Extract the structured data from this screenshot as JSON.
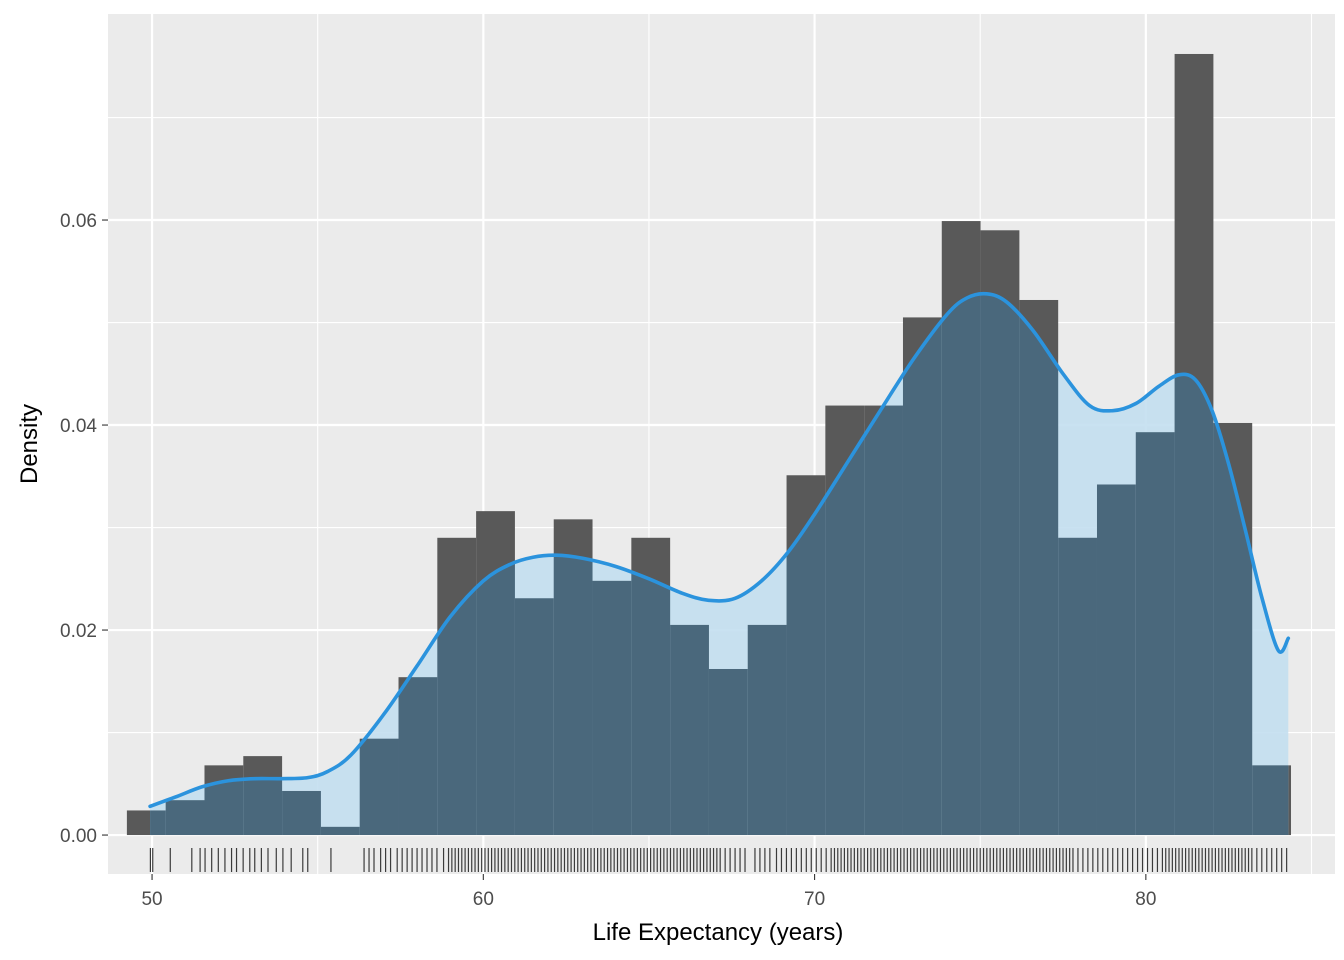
{
  "chart_data": {
    "type": "histogram",
    "title": "",
    "xlabel": "Life Expectancy (years)",
    "ylabel": "Density",
    "xlim": [
      48.67,
      85.71
    ],
    "ylim": [
      -0.0038,
      0.0801
    ],
    "x_ticks": [
      50,
      60,
      70,
      80
    ],
    "x_tick_labels": [
      "50",
      "60",
      "70",
      "80"
    ],
    "y_ticks": [
      0,
      0.02,
      0.04,
      0.06
    ],
    "y_tick_labels": [
      "0.00",
      "0.02",
      "0.04",
      "0.06"
    ],
    "grid": true,
    "legend": "none",
    "colors": {
      "panel_background": "#ebebeb",
      "grid_line": "#ffffff",
      "histogram_fill": "#595959",
      "density_fill": "#c3dff0",
      "density_fill_opacity": 0.9,
      "overlap_fill": "#4a687c",
      "density_line": "#2b93dd",
      "rug": "#000000"
    },
    "histogram": {
      "bin_start": 49.24,
      "bin_width": 1.1714,
      "densities": [
        0.0024,
        0.0034,
        0.0068,
        0.0077,
        0.0043,
        0.0008,
        0.0094,
        0.0154,
        0.029,
        0.0316,
        0.0231,
        0.0308,
        0.0248,
        0.029,
        0.0205,
        0.0162,
        0.0205,
        0.0351,
        0.0419,
        0.0419,
        0.0505,
        0.0599,
        0.059,
        0.0522,
        0.029,
        0.0342,
        0.0393,
        0.0762,
        0.0402,
        0.0068
      ]
    },
    "density_curve": {
      "x": [
        49.94,
        50.7,
        51.5,
        52.3,
        53.1,
        53.9,
        54.7,
        55.3,
        56.0,
        57.0,
        58.0,
        59.0,
        60.0,
        60.8,
        61.5,
        62.2,
        63.0,
        64.0,
        65.0,
        66.0,
        66.8,
        67.6,
        68.4,
        69.2,
        70.0,
        71.0,
        72.0,
        73.0,
        74.0,
        74.6,
        75.2,
        75.8,
        76.6,
        77.5,
        78.3,
        79.0,
        79.7,
        80.4,
        81.0,
        81.5,
        82.0,
        82.5,
        83.0,
        83.5,
        84.0,
        84.3
      ],
      "y": [
        0.0028,
        0.0037,
        0.0047,
        0.0053,
        0.0055,
        0.0055,
        0.0056,
        0.0062,
        0.0078,
        0.0118,
        0.0165,
        0.0213,
        0.0248,
        0.0264,
        0.0271,
        0.0273,
        0.027,
        0.0262,
        0.025,
        0.0236,
        0.0229,
        0.0231,
        0.0248,
        0.0276,
        0.0313,
        0.0364,
        0.0415,
        0.0465,
        0.0508,
        0.0524,
        0.0528,
        0.052,
        0.0492,
        0.045,
        0.0419,
        0.0414,
        0.0421,
        0.0438,
        0.0449,
        0.0444,
        0.0414,
        0.0362,
        0.0298,
        0.0232,
        0.018,
        0.0192
      ]
    },
    "rug": {
      "x": [
        49.95,
        50.02,
        50.55,
        51.2,
        51.45,
        51.6,
        51.8,
        52.0,
        52.2,
        52.4,
        52.55,
        52.75,
        52.95,
        53.1,
        53.3,
        53.5,
        53.75,
        53.95,
        54.2,
        54.55,
        54.7,
        55.4,
        56.4,
        56.55,
        56.7,
        56.9,
        57.05,
        57.2,
        57.4,
        57.55,
        57.7,
        57.85,
        58.0,
        58.15,
        58.3,
        58.45,
        58.6,
        58.8,
        58.95,
        59.05,
        59.15,
        59.25,
        59.35,
        59.45,
        59.55,
        59.65,
        59.75,
        59.85,
        59.95,
        60.05,
        60.15,
        60.25,
        60.35,
        60.45,
        60.55,
        60.65,
        60.75,
        60.85,
        60.95,
        61.05,
        61.15,
        61.25,
        61.35,
        61.45,
        61.55,
        61.65,
        61.75,
        61.85,
        61.95,
        62.05,
        62.15,
        62.25,
        62.35,
        62.45,
        62.55,
        62.65,
        62.75,
        62.85,
        62.95,
        63.05,
        63.15,
        63.25,
        63.35,
        63.45,
        63.55,
        63.65,
        63.75,
        63.85,
        63.95,
        64.05,
        64.15,
        64.25,
        64.35,
        64.45,
        64.55,
        64.65,
        64.75,
        64.85,
        64.95,
        65.05,
        65.15,
        65.25,
        65.35,
        65.45,
        65.55,
        65.65,
        65.75,
        65.85,
        65.95,
        66.05,
        66.15,
        66.25,
        66.35,
        66.45,
        66.55,
        66.65,
        66.75,
        66.85,
        66.95,
        67.05,
        67.15,
        67.3,
        67.45,
        67.6,
        67.75,
        67.9,
        68.2,
        68.35,
        68.5,
        68.65,
        68.85,
        69.0,
        69.15,
        69.3,
        69.45,
        69.6,
        69.75,
        69.9,
        70.05,
        70.2,
        70.35,
        70.5,
        70.6,
        70.7,
        70.8,
        70.9,
        71.0,
        71.1,
        71.2,
        71.3,
        71.4,
        71.5,
        71.6,
        71.7,
        71.8,
        71.9,
        72.0,
        72.1,
        72.2,
        72.3,
        72.4,
        72.5,
        72.6,
        72.7,
        72.8,
        72.9,
        73.0,
        73.1,
        73.2,
        73.3,
        73.4,
        73.5,
        73.6,
        73.7,
        73.8,
        73.9,
        74.0,
        74.1,
        74.2,
        74.3,
        74.4,
        74.5,
        74.6,
        74.7,
        74.8,
        74.9,
        75.0,
        75.1,
        75.2,
        75.3,
        75.4,
        75.5,
        75.6,
        75.7,
        75.8,
        75.9,
        76.0,
        76.1,
        76.2,
        76.3,
        76.4,
        76.5,
        76.6,
        76.7,
        76.8,
        76.9,
        77.0,
        77.1,
        77.2,
        77.3,
        77.4,
        77.5,
        77.6,
        77.7,
        77.8,
        77.95,
        78.1,
        78.25,
        78.4,
        78.55,
        78.7,
        78.85,
        79.0,
        79.15,
        79.3,
        79.45,
        79.6,
        79.75,
        79.9,
        80.05,
        80.2,
        80.35,
        80.5,
        80.6,
        80.7,
        80.8,
        80.9,
        81.0,
        81.1,
        81.2,
        81.3,
        81.4,
        81.5,
        81.6,
        81.7,
        81.8,
        81.9,
        82.0,
        82.1,
        82.2,
        82.3,
        82.4,
        82.5,
        82.6,
        82.7,
        82.8,
        82.9,
        83.0,
        83.1,
        83.2,
        83.35,
        83.5,
        83.65,
        83.8,
        83.95,
        84.1,
        84.25
      ]
    }
  }
}
